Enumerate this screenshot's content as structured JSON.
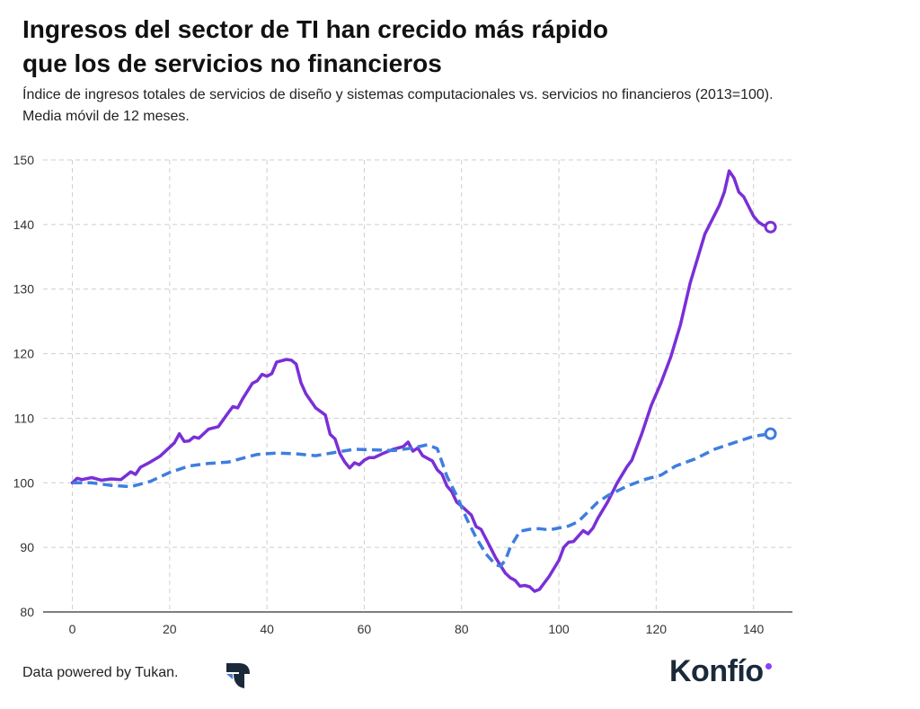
{
  "header": {
    "title_line1": "Ingresos del sector de TI han crecido más rápido",
    "title_line2": "que los de servicios no financieros",
    "subtitle_line1": "Índice de ingresos totales de servicios de diseño y sistemas computacionales vs. servicios no financieros (2013=100).",
    "subtitle_line2": "Media móvil de 12 meses."
  },
  "footer": {
    "credit": "Data powered by Tukan.",
    "brand": "Konfío"
  },
  "colors": {
    "it_series": "#7a2fd6",
    "nonfin_series": "#3f7ede",
    "grid": "#cfcfcf",
    "brand_dot": "#8a3ffc"
  },
  "icons": {
    "tukan_logo": "tukan-logo-icon"
  },
  "chart_data": {
    "type": "line",
    "title": "Ingresos del sector de TI han crecido más rápido que los de servicios no financieros",
    "xlabel": "",
    "ylabel": "",
    "xlim": [
      -6,
      148
    ],
    "ylim": [
      80,
      150
    ],
    "xticks": [
      0,
      20,
      40,
      60,
      80,
      100,
      120,
      140
    ],
    "yticks": [
      80,
      90,
      100,
      110,
      120,
      130,
      140,
      150
    ],
    "grid": true,
    "legend": "none",
    "series": [
      {
        "key": "it",
        "style": "solid",
        "points": [
          [
            0,
            100
          ],
          [
            1,
            100.7
          ],
          [
            2,
            100.5
          ],
          [
            4,
            100.8
          ],
          [
            6,
            100.4
          ],
          [
            8,
            100.6
          ],
          [
            10,
            100.5
          ],
          [
            12,
            101.7
          ],
          [
            13,
            101.3
          ],
          [
            14,
            102.4
          ],
          [
            16,
            103.2
          ],
          [
            18,
            104.1
          ],
          [
            20,
            105.5
          ],
          [
            21,
            106.2
          ],
          [
            22,
            107.6
          ],
          [
            23,
            106.4
          ],
          [
            24,
            106.5
          ],
          [
            25,
            107.1
          ],
          [
            26,
            106.9
          ],
          [
            28,
            108.3
          ],
          [
            30,
            108.7
          ],
          [
            32,
            110.8
          ],
          [
            33,
            111.8
          ],
          [
            34,
            111.6
          ],
          [
            35,
            113.0
          ],
          [
            37,
            115.4
          ],
          [
            38,
            115.8
          ],
          [
            39,
            116.8
          ],
          [
            40,
            116.5
          ],
          [
            41,
            116.9
          ],
          [
            42,
            118.7
          ],
          [
            44,
            119.1
          ],
          [
            45,
            119.0
          ],
          [
            46,
            118.4
          ],
          [
            47,
            115.5
          ],
          [
            48,
            113.8
          ],
          [
            50,
            111.6
          ],
          [
            52,
            110.5
          ],
          [
            53,
            107.5
          ],
          [
            54,
            106.8
          ],
          [
            55,
            104.5
          ],
          [
            56,
            103.2
          ],
          [
            57,
            102.3
          ],
          [
            58,
            103.1
          ],
          [
            59,
            102.8
          ],
          [
            60,
            103.5
          ],
          [
            61,
            103.9
          ],
          [
            62,
            103.9
          ],
          [
            64,
            104.6
          ],
          [
            66,
            105.2
          ],
          [
            68,
            105.6
          ],
          [
            69,
            106.3
          ],
          [
            70,
            104.9
          ],
          [
            71,
            105.4
          ],
          [
            72,
            104.2
          ],
          [
            74,
            103.4
          ],
          [
            75,
            102.0
          ],
          [
            76,
            101.3
          ],
          [
            77,
            99.5
          ],
          [
            78,
            98.6
          ],
          [
            79,
            97.0
          ],
          [
            80,
            96.4
          ],
          [
            82,
            95.0
          ],
          [
            83,
            93.2
          ],
          [
            84,
            92.8
          ],
          [
            86,
            89.9
          ],
          [
            87,
            88.4
          ],
          [
            89,
            86.0
          ],
          [
            90,
            85.3
          ],
          [
            91,
            84.9
          ],
          [
            92,
            84.0
          ],
          [
            93,
            84.1
          ],
          [
            94,
            83.9
          ],
          [
            95,
            83.2
          ],
          [
            96,
            83.5
          ],
          [
            98,
            85.5
          ],
          [
            100,
            88.0
          ],
          [
            101,
            90.0
          ],
          [
            102,
            90.8
          ],
          [
            103,
            90.9
          ],
          [
            105,
            92.6
          ],
          [
            106,
            92.1
          ],
          [
            107,
            93.0
          ],
          [
            108,
            94.5
          ],
          [
            110,
            97.0
          ],
          [
            112,
            100.0
          ],
          [
            114,
            102.5
          ],
          [
            115,
            103.5
          ],
          [
            117,
            107.5
          ],
          [
            119,
            112.0
          ],
          [
            121,
            115.5
          ],
          [
            123,
            119.5
          ],
          [
            125,
            124.5
          ],
          [
            127,
            131.0
          ],
          [
            129,
            136.0
          ],
          [
            130,
            138.5
          ],
          [
            131,
            140.0
          ],
          [
            133,
            143.0
          ],
          [
            134,
            145.0
          ],
          [
            135,
            148.3
          ],
          [
            136,
            147.2
          ],
          [
            137,
            145.0
          ],
          [
            138,
            144.3
          ],
          [
            140,
            141.3
          ],
          [
            141,
            140.4
          ],
          [
            142,
            139.9
          ],
          [
            143.5,
            139.6
          ]
        ]
      },
      {
        "key": "nonfin",
        "style": "dashed",
        "points": [
          [
            0,
            100
          ],
          [
            4,
            100.0
          ],
          [
            8,
            99.6
          ],
          [
            12,
            99.4
          ],
          [
            16,
            100.2
          ],
          [
            20,
            101.6
          ],
          [
            24,
            102.6
          ],
          [
            28,
            103.0
          ],
          [
            32,
            103.2
          ],
          [
            36,
            104.0
          ],
          [
            38,
            104.4
          ],
          [
            42,
            104.6
          ],
          [
            46,
            104.5
          ],
          [
            50,
            104.2
          ],
          [
            54,
            104.7
          ],
          [
            58,
            105.2
          ],
          [
            62,
            105.1
          ],
          [
            66,
            105.0
          ],
          [
            70,
            105.4
          ],
          [
            73,
            105.9
          ],
          [
            75,
            105.3
          ],
          [
            77,
            101.0
          ],
          [
            79,
            98.0
          ],
          [
            81,
            94.5
          ],
          [
            83,
            91.5
          ],
          [
            85,
            89.0
          ],
          [
            87,
            87.3
          ],
          [
            88,
            87.1
          ],
          [
            89,
            88.0
          ],
          [
            90,
            90.0
          ],
          [
            92,
            92.5
          ],
          [
            94,
            92.8
          ],
          [
            96,
            92.9
          ],
          [
            98,
            92.7
          ],
          [
            100,
            93.0
          ],
          [
            102,
            93.3
          ],
          [
            104,
            94.0
          ],
          [
            106,
            95.5
          ],
          [
            108,
            97.0
          ],
          [
            110,
            98.0
          ],
          [
            114,
            99.5
          ],
          [
            118,
            100.6
          ],
          [
            121,
            101.2
          ],
          [
            124,
            102.6
          ],
          [
            128,
            103.7
          ],
          [
            132,
            105.2
          ],
          [
            136,
            106.2
          ],
          [
            140,
            107.2
          ],
          [
            143.5,
            107.6
          ]
        ]
      }
    ],
    "end_markers": [
      {
        "series": "it",
        "x": 143.5,
        "y": 139.6
      },
      {
        "series": "nonfin",
        "x": 143.5,
        "y": 107.6
      }
    ]
  }
}
